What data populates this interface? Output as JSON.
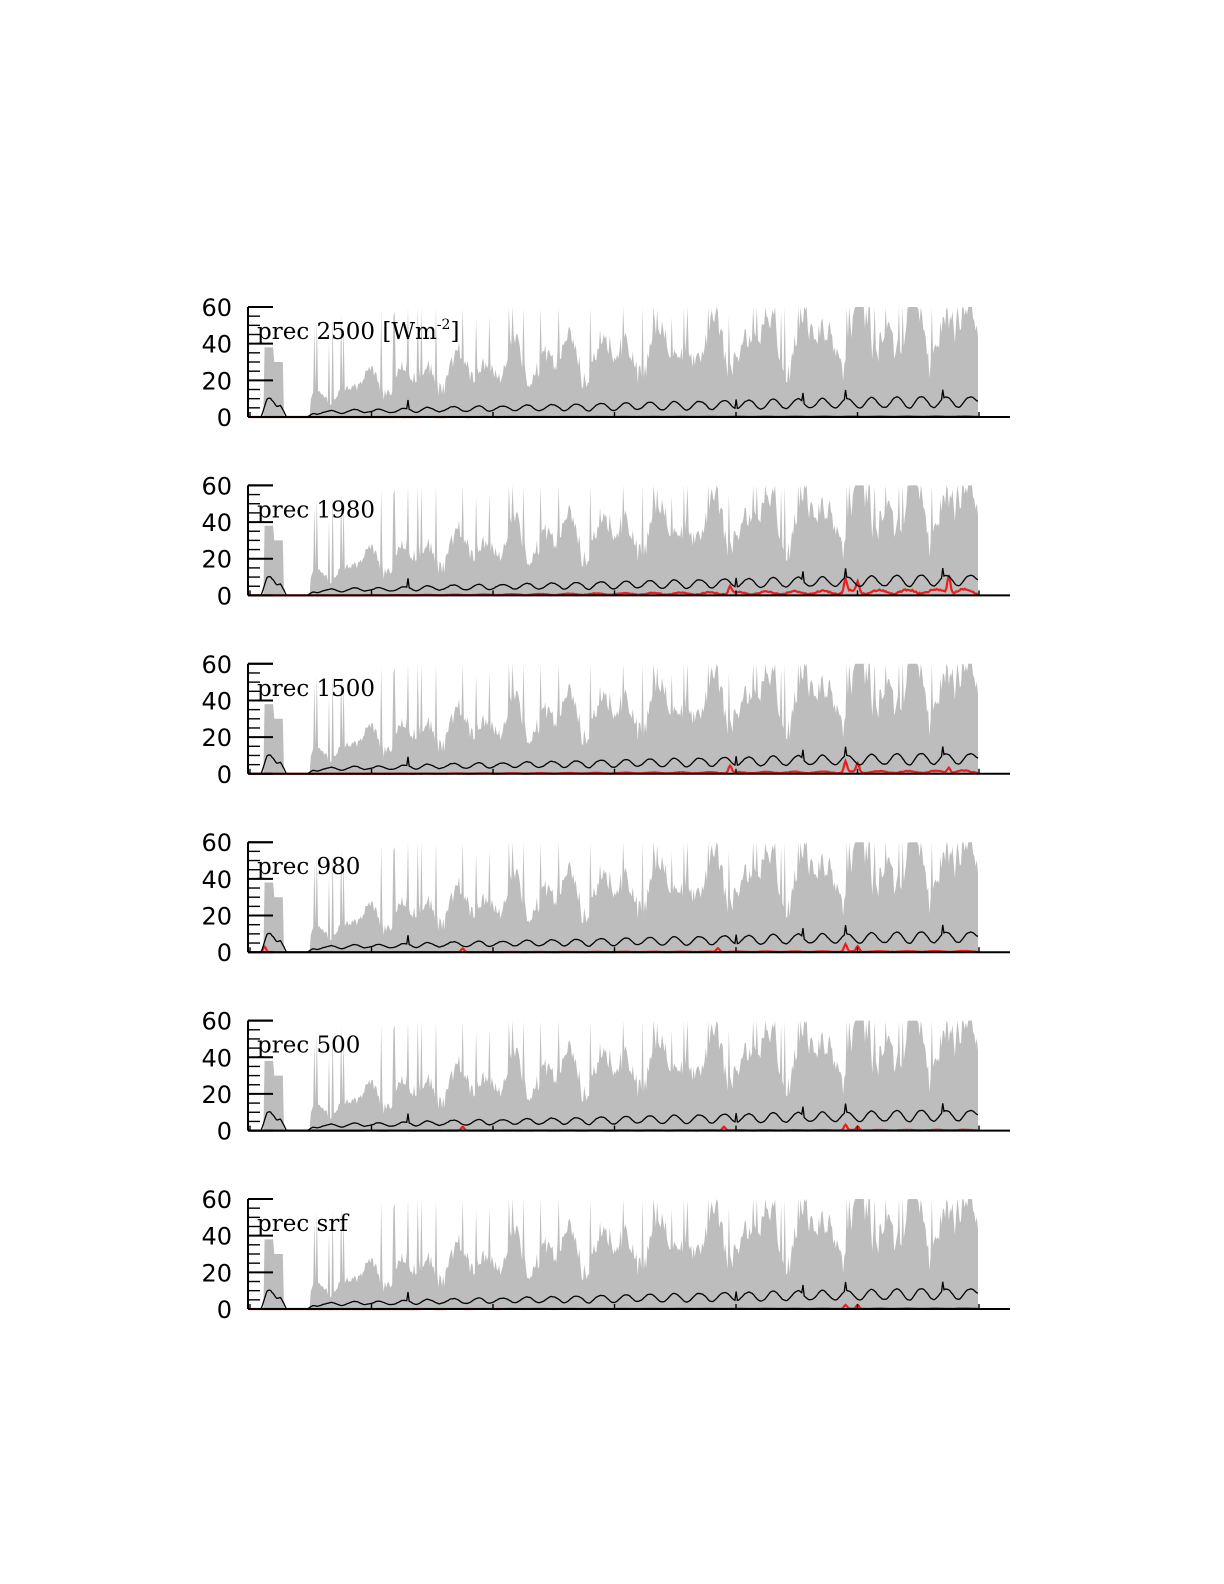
{
  "chart_data": {
    "type": "area",
    "n_points": 600,
    "ylim": [
      0,
      60
    ],
    "yticks": [
      "0",
      "20",
      "40",
      "60"
    ],
    "colors": {
      "spread": "#bdbdbd",
      "mean": "#000000",
      "highlight": "#ee1c1c"
    },
    "panels": [
      {
        "label": "prec 2500 [Wm",
        "label_sup": "-2",
        "label_end": "]",
        "red_scale": 0.35,
        "red_events": []
      },
      {
        "label": "prec 1980",
        "label_sup": "",
        "label_end": "",
        "red_scale": 3.2,
        "red_events": [
          [
            395,
            4
          ],
          [
            490,
            7
          ],
          [
            500,
            6
          ],
          [
            575,
            10
          ],
          [
            610,
            8
          ]
        ]
      },
      {
        "label": "prec 1500",
        "label_sup": "",
        "label_end": "",
        "red_scale": 1.6,
        "red_events": [
          [
            395,
            4
          ],
          [
            490,
            6
          ],
          [
            500,
            5
          ],
          [
            575,
            3
          ]
        ]
      },
      {
        "label": "prec 980",
        "label_sup": "",
        "label_end": "",
        "red_scale": 0.6,
        "red_events": [
          [
            12,
            3
          ],
          [
            175,
            2
          ],
          [
            385,
            2
          ],
          [
            490,
            4
          ],
          [
            500,
            3
          ]
        ]
      },
      {
        "label": "prec 500",
        "label_sup": "",
        "label_end": "",
        "red_scale": 0.4,
        "red_events": [
          [
            175,
            2
          ],
          [
            390,
            2
          ],
          [
            490,
            3
          ],
          [
            500,
            2
          ]
        ]
      },
      {
        "label": "prec srf",
        "label_sup": "",
        "label_end": "",
        "red_scale": 0.3,
        "red_events": [
          [
            490,
            2
          ],
          [
            500,
            2
          ]
        ]
      }
    ]
  }
}
